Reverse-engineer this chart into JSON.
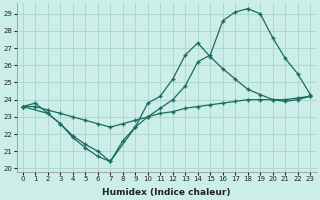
{
  "xlabel": "Humidex (Indice chaleur)",
  "background_color": "#cceee8",
  "grid_color": "#aad4ce",
  "line_color": "#1a6b60",
  "xlim": [
    -0.5,
    23.5
  ],
  "ylim": [
    19.8,
    29.6
  ],
  "xticks": [
    0,
    1,
    2,
    3,
    4,
    5,
    6,
    7,
    8,
    9,
    10,
    11,
    12,
    13,
    14,
    15,
    16,
    17,
    18,
    19,
    20,
    21,
    22,
    23
  ],
  "yticks": [
    20,
    21,
    22,
    23,
    24,
    25,
    26,
    27,
    28,
    29
  ],
  "line1_x": [
    0,
    1,
    2,
    3,
    4,
    5,
    6,
    7,
    8,
    9,
    10,
    11,
    12,
    13,
    14,
    15,
    16,
    17,
    18,
    19,
    20,
    21,
    22,
    23
  ],
  "line1_y": [
    23.6,
    23.8,
    23.2,
    22.6,
    21.8,
    21.2,
    20.7,
    20.4,
    21.6,
    22.4,
    23.0,
    23.5,
    24.0,
    24.8,
    26.2,
    26.6,
    28.6,
    29.1,
    29.3,
    29.0,
    27.6,
    26.4,
    25.5,
    24.3
  ],
  "line2_x": [
    0,
    2,
    3,
    4,
    5,
    6,
    7,
    9,
    10,
    11,
    12,
    13,
    14,
    15,
    16,
    17,
    18,
    19,
    20,
    21,
    22,
    23
  ],
  "line2_y": [
    23.6,
    23.2,
    22.6,
    21.9,
    21.4,
    21.0,
    20.4,
    22.4,
    23.8,
    24.2,
    25.2,
    26.6,
    27.3,
    26.5,
    25.8,
    25.2,
    24.6,
    24.3,
    24.0,
    23.9,
    24.0,
    24.2
  ],
  "line3_x": [
    0,
    1,
    2,
    3,
    4,
    5,
    6,
    7,
    8,
    9,
    10,
    11,
    12,
    13,
    14,
    15,
    16,
    17,
    18,
    19,
    20,
    21,
    22,
    23
  ],
  "line3_y": [
    23.6,
    23.6,
    23.4,
    23.2,
    23.0,
    22.8,
    22.6,
    22.4,
    22.6,
    22.8,
    23.0,
    23.2,
    23.3,
    23.5,
    23.6,
    23.7,
    23.8,
    23.9,
    24.0,
    24.0,
    24.0,
    24.0,
    24.1,
    24.2
  ]
}
